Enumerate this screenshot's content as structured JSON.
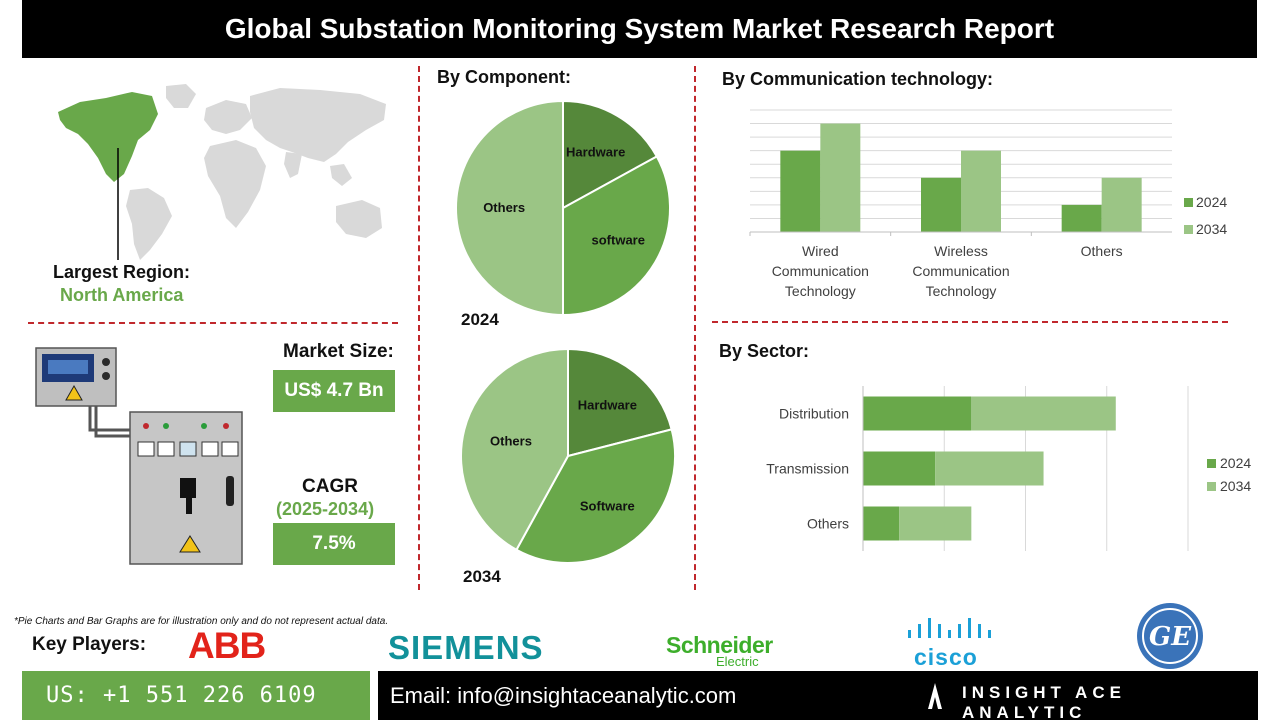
{
  "header": {
    "title": "Global Substation Monitoring System Market Research Report"
  },
  "region": {
    "label": "Largest Region:",
    "value": "North America"
  },
  "market": {
    "size_label": "Market Size:",
    "size_value": "US$ 4.7 Bn",
    "cagr_label": "CAGR",
    "cagr_period": "(2025-2034)",
    "cagr_value": "7.5%"
  },
  "footnote": "*Pie Charts and Bar Graphs are for illustration only and do not represent actual data.",
  "key_players": {
    "label": "Key Players:",
    "logos": [
      "ABB",
      "SIEMENS",
      "Schneider",
      "Electric",
      "cisco",
      "GE"
    ]
  },
  "contact": {
    "phone": "US: +1 551 226 6109",
    "email": "Email: info@insightaceanalytic.com",
    "brand": "INSIGHT ACE ANALYTIC"
  },
  "colors": {
    "dark_green": "#55883a",
    "mid_green": "#69a84a",
    "light_green": "#9bc585",
    "red_dash": "#c0282d"
  },
  "chart_data": [
    {
      "type": "pie",
      "title": "By Component:",
      "year_label": "2024",
      "labels": [
        "Hardware",
        "software",
        "Others"
      ],
      "values": [
        17,
        33,
        50
      ]
    },
    {
      "type": "pie",
      "title": "By Component:",
      "year_label": "2034",
      "labels": [
        "Hardware",
        "Software",
        "Others"
      ],
      "values": [
        21,
        37,
        42
      ]
    },
    {
      "type": "bar",
      "title": "By Communication technology:",
      "categories": [
        "Wired Communication Technology",
        "Wireless Communication Technology",
        "Others"
      ],
      "category_lines": [
        [
          "Wired",
          "Communication",
          "Technology"
        ],
        [
          "Wireless",
          "Communication",
          "Technology"
        ],
        [
          "Others"
        ]
      ],
      "series": [
        {
          "name": "2024",
          "values": [
            3,
            2,
            1
          ]
        },
        {
          "name": "2034",
          "values": [
            4,
            3,
            2
          ]
        }
      ],
      "ylim": [
        0,
        4.5
      ],
      "legend": "right"
    },
    {
      "type": "bar",
      "orientation": "horizontal",
      "stacked": true,
      "title": "By Sector:",
      "categories": [
        "Distribution",
        "Transmission",
        "Others"
      ],
      "series": [
        {
          "name": "2024",
          "values": [
            3,
            2,
            1
          ]
        },
        {
          "name": "2034",
          "values": [
            4,
            3,
            2
          ]
        }
      ],
      "xlim": [
        0,
        9
      ],
      "legend": "right"
    }
  ]
}
